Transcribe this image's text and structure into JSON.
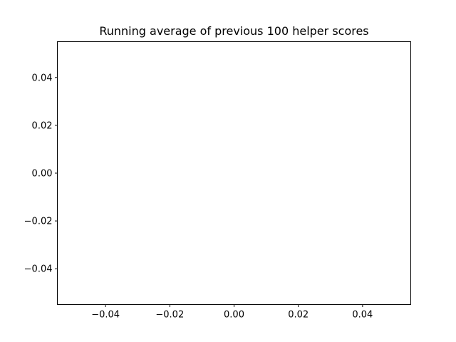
{
  "chart_data": {
    "type": "line",
    "title": "Running average of previous 100 helper scores",
    "xlabel": "",
    "ylabel": "",
    "xlim": [
      -0.055,
      0.055
    ],
    "ylim": [
      -0.055,
      0.055
    ],
    "series": [],
    "x_ticks": [
      -0.04,
      -0.02,
      0.0,
      0.02,
      0.04
    ],
    "x_tick_labels": [
      "−0.04",
      "−0.02",
      "0.00",
      "0.02",
      "0.04"
    ],
    "y_ticks": [
      -0.04,
      -0.02,
      0.0,
      0.02,
      0.04
    ],
    "y_tick_labels": [
      "−0.04",
      "−0.02",
      "0.00",
      "0.02",
      "0.04"
    ],
    "grid": false,
    "legend": "none"
  }
}
